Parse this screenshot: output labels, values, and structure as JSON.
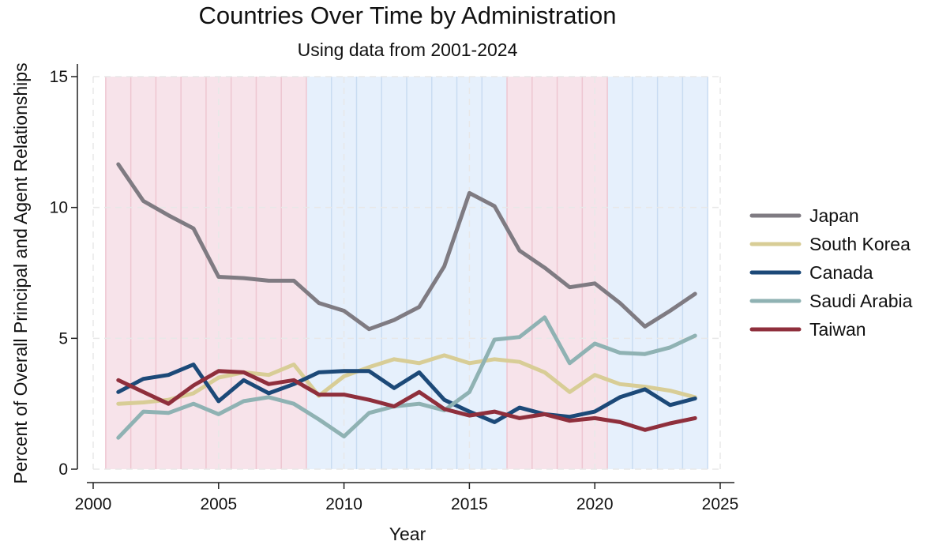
{
  "chart_data": {
    "type": "line",
    "title": "Countries Over Time by Administration",
    "subtitle": "Using data from 2001-2024",
    "xlabel": "Year",
    "ylabel": "Percent of Overall Principal and Agent Relationships",
    "xlim": [
      2000,
      2025
    ],
    "ylim": [
      0,
      15
    ],
    "xticks": [
      2000,
      2005,
      2010,
      2015,
      2020,
      2025
    ],
    "yticks": [
      0,
      5,
      10,
      15
    ],
    "grid": true,
    "legend_position": "right",
    "x": [
      2001,
      2002,
      2003,
      2004,
      2005,
      2006,
      2007,
      2008,
      2009,
      2010,
      2011,
      2012,
      2013,
      2014,
      2015,
      2016,
      2017,
      2018,
      2019,
      2020,
      2021,
      2022,
      2023,
      2024
    ],
    "administration_bands": [
      {
        "start": 2000.5,
        "end": 2008.5,
        "color": "#f7e3ea"
      },
      {
        "start": 2008.5,
        "end": 2016.5,
        "color": "#e6f0fc"
      },
      {
        "start": 2016.5,
        "end": 2020.5,
        "color": "#f7e3ea"
      },
      {
        "start": 2020.5,
        "end": 2024.5,
        "color": "#e6f0fc"
      }
    ],
    "series": [
      {
        "name": "Japan",
        "color": "#7f7b82",
        "values": [
          11.65,
          10.25,
          9.7,
          9.2,
          7.35,
          7.3,
          7.2,
          7.2,
          6.35,
          6.05,
          5.35,
          5.7,
          6.2,
          7.75,
          10.55,
          10.05,
          8.35,
          7.7,
          6.95,
          7.1,
          6.35,
          5.45,
          6.05,
          6.7
        ]
      },
      {
        "name": "South Korea",
        "color": "#d8cd96",
        "values": [
          2.5,
          2.55,
          2.65,
          2.9,
          3.5,
          3.7,
          3.6,
          4.0,
          2.8,
          3.55,
          3.9,
          4.2,
          4.05,
          4.35,
          4.05,
          4.2,
          4.1,
          3.7,
          2.95,
          3.6,
          3.25,
          3.15,
          3.0,
          2.75
        ]
      },
      {
        "name": "Canada",
        "color": "#1c4978",
        "values": [
          2.95,
          3.45,
          3.6,
          4.0,
          2.6,
          3.4,
          2.9,
          3.25,
          3.7,
          3.75,
          3.75,
          3.1,
          3.7,
          2.65,
          2.2,
          1.8,
          2.35,
          2.1,
          2.0,
          2.2,
          2.75,
          3.05,
          2.45,
          2.7
        ]
      },
      {
        "name": "Saudi Arabia",
        "color": "#8fb2b3",
        "values": [
          1.2,
          2.2,
          2.15,
          2.5,
          2.1,
          2.6,
          2.75,
          2.5,
          1.9,
          1.25,
          2.15,
          2.4,
          2.5,
          2.25,
          2.95,
          4.95,
          5.05,
          5.8,
          4.05,
          4.8,
          4.45,
          4.4,
          4.65,
          5.1
        ]
      },
      {
        "name": "Taiwan",
        "color": "#8f2f3c",
        "values": [
          3.4,
          2.95,
          2.5,
          3.2,
          3.75,
          3.7,
          3.25,
          3.4,
          2.85,
          2.85,
          2.65,
          2.4,
          2.95,
          2.3,
          2.05,
          2.2,
          1.95,
          2.1,
          1.85,
          1.95,
          1.8,
          1.5,
          1.75,
          1.95
        ]
      }
    ]
  }
}
